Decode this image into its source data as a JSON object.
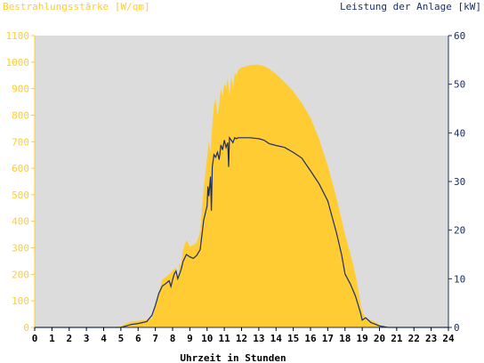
{
  "colors": {
    "irradiance": "#FFCC33",
    "power": "#1A2E6B",
    "plot_bg": "#DCDCDC",
    "left_axis_text": "#FFCC33",
    "right_axis_text": "#1A2E6B"
  },
  "chart_data": {
    "type": "area",
    "left_title": "Bestrahlungsstärke [W/qm]",
    "right_title": "Leistung der Anlage [kW]",
    "xlabel": "Uhrzeit in Stunden",
    "xlim": [
      0,
      24
    ],
    "y_left_lim": [
      0,
      1100
    ],
    "y_right_lim": [
      0,
      60
    ],
    "x_ticks": [
      "0",
      "1",
      "2",
      "3",
      "4",
      "5",
      "6",
      "7",
      "8",
      "9",
      "10",
      "11",
      "12",
      "13",
      "14",
      "15",
      "16",
      "17",
      "18",
      "19",
      "20",
      "21",
      "22",
      "23",
      "24"
    ],
    "y_left_ticks": [
      "0",
      "100",
      "200",
      "300",
      "400",
      "500",
      "600",
      "700",
      "800",
      "900",
      "1000",
      "1100"
    ],
    "y_right_ticks": [
      "0",
      "10",
      "20",
      "30",
      "40",
      "50",
      "60"
    ],
    "grid": false,
    "series": [
      {
        "name": "Bestrahlungsstärke",
        "axis": "left",
        "style": "area",
        "points": [
          [
            0,
            0
          ],
          [
            4.5,
            0
          ],
          [
            5.0,
            5
          ],
          [
            5.3,
            15
          ],
          [
            5.6,
            22
          ],
          [
            6.0,
            25
          ],
          [
            6.5,
            28
          ],
          [
            6.8,
            35
          ],
          [
            7.0,
            80
          ],
          [
            7.2,
            130
          ],
          [
            7.4,
            180
          ],
          [
            7.6,
            190
          ],
          [
            7.8,
            200
          ],
          [
            8.0,
            215
          ],
          [
            8.2,
            225
          ],
          [
            8.3,
            180
          ],
          [
            8.4,
            240
          ],
          [
            8.5,
            235
          ],
          [
            8.6,
            290
          ],
          [
            8.8,
            330
          ],
          [
            9.0,
            305
          ],
          [
            9.2,
            310
          ],
          [
            9.4,
            320
          ],
          [
            9.6,
            360
          ],
          [
            9.8,
            520
          ],
          [
            10.0,
            640
          ],
          [
            10.1,
            700
          ],
          [
            10.2,
            660
          ],
          [
            10.3,
            760
          ],
          [
            10.4,
            840
          ],
          [
            10.5,
            860
          ],
          [
            10.6,
            800
          ],
          [
            10.7,
            840
          ],
          [
            10.8,
            900
          ],
          [
            10.9,
            870
          ],
          [
            11.0,
            920
          ],
          [
            11.1,
            900
          ],
          [
            11.2,
            940
          ],
          [
            11.3,
            870
          ],
          [
            11.4,
            950
          ],
          [
            11.5,
            900
          ],
          [
            11.6,
            960
          ],
          [
            11.7,
            950
          ],
          [
            11.8,
            970
          ],
          [
            12.0,
            980
          ],
          [
            12.3,
            985
          ],
          [
            12.6,
            990
          ],
          [
            13.0,
            990
          ],
          [
            13.3,
            985
          ],
          [
            13.6,
            975
          ],
          [
            14.0,
            955
          ],
          [
            14.5,
            925
          ],
          [
            15.0,
            890
          ],
          [
            15.5,
            845
          ],
          [
            16.0,
            790
          ],
          [
            16.5,
            710
          ],
          [
            17.0,
            610
          ],
          [
            17.5,
            490
          ],
          [
            18.0,
            350
          ],
          [
            18.3,
            280
          ],
          [
            18.5,
            230
          ],
          [
            18.7,
            170
          ],
          [
            18.9,
            90
          ],
          [
            19.0,
            60
          ],
          [
            19.2,
            35
          ],
          [
            19.5,
            28
          ],
          [
            19.8,
            18
          ],
          [
            20.0,
            10
          ],
          [
            20.3,
            4
          ],
          [
            20.6,
            0
          ],
          [
            24,
            0
          ]
        ]
      },
      {
        "name": "Leistung der Anlage",
        "axis": "right",
        "style": "line",
        "points": [
          [
            0,
            0
          ],
          [
            5.0,
            0
          ],
          [
            5.3,
            0.3
          ],
          [
            5.6,
            0.6
          ],
          [
            6.0,
            0.8
          ],
          [
            6.5,
            1.2
          ],
          [
            6.8,
            2.5
          ],
          [
            7.0,
            4.5
          ],
          [
            7.2,
            7
          ],
          [
            7.4,
            8.5
          ],
          [
            7.6,
            9.0
          ],
          [
            7.8,
            9.6
          ],
          [
            7.9,
            8.4
          ],
          [
            8.0,
            9.8
          ],
          [
            8.1,
            11.0
          ],
          [
            8.2,
            11.6
          ],
          [
            8.3,
            10.0
          ],
          [
            8.4,
            11.0
          ],
          [
            8.5,
            12.0
          ],
          [
            8.6,
            13.5
          ],
          [
            8.8,
            15.0
          ],
          [
            9.0,
            14.5
          ],
          [
            9.2,
            14.2
          ],
          [
            9.4,
            14.8
          ],
          [
            9.6,
            16.0
          ],
          [
            9.8,
            22.0
          ],
          [
            10.0,
            25.0
          ],
          [
            10.05,
            29.0
          ],
          [
            10.1,
            27.0
          ],
          [
            10.2,
            31.0
          ],
          [
            10.25,
            24.0
          ],
          [
            10.3,
            33.0
          ],
          [
            10.4,
            35.5
          ],
          [
            10.5,
            35.0
          ],
          [
            10.6,
            36.0
          ],
          [
            10.7,
            34.5
          ],
          [
            10.8,
            37.5
          ],
          [
            10.9,
            36.5
          ],
          [
            11.0,
            38.5
          ],
          [
            11.1,
            37.0
          ],
          [
            11.2,
            38.0
          ],
          [
            11.25,
            33.0
          ],
          [
            11.3,
            39.0
          ],
          [
            11.4,
            38.5
          ],
          [
            11.5,
            38.0
          ],
          [
            11.6,
            39.0
          ],
          [
            11.7,
            38.8
          ],
          [
            11.8,
            39.0
          ],
          [
            12.0,
            39.0
          ],
          [
            12.5,
            39.0
          ],
          [
            13.0,
            38.8
          ],
          [
            13.3,
            38.5
          ],
          [
            13.6,
            37.8
          ],
          [
            14.0,
            37.4
          ],
          [
            14.5,
            37.0
          ],
          [
            15.0,
            36.0
          ],
          [
            15.5,
            34.8
          ],
          [
            16.0,
            32.2
          ],
          [
            16.5,
            29.5
          ],
          [
            17.0,
            26.0
          ],
          [
            17.5,
            19.5
          ],
          [
            17.8,
            15.0
          ],
          [
            18.0,
            11.0
          ],
          [
            18.3,
            9.0
          ],
          [
            18.6,
            6.5
          ],
          [
            18.9,
            3.0
          ],
          [
            19.0,
            1.5
          ],
          [
            19.2,
            2.0
          ],
          [
            19.5,
            1.0
          ],
          [
            19.8,
            0.6
          ],
          [
            20.0,
            0.3
          ],
          [
            20.5,
            0
          ],
          [
            24,
            0
          ]
        ]
      }
    ]
  }
}
